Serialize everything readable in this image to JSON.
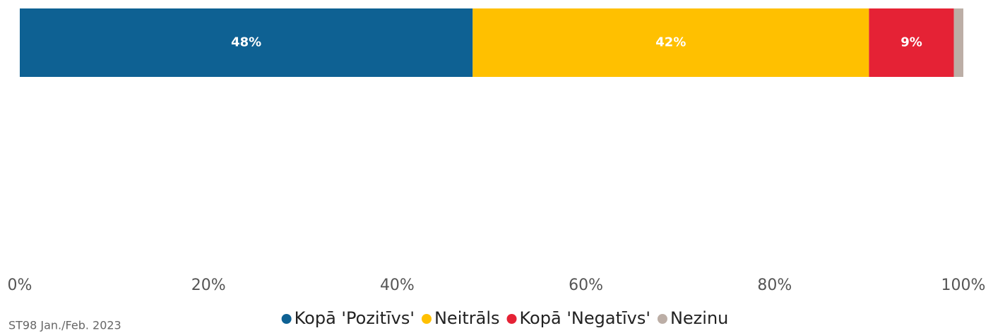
{
  "chart_data": {
    "type": "stacked-bar-horizontal",
    "categories": [
      null
    ],
    "series": [
      {
        "name": "Kopā 'Pozitīvs'",
        "color": "#0e6193",
        "values": [
          48
        ],
        "value_labels": [
          "48%"
        ]
      },
      {
        "name": "Neitrāls",
        "color": "#ffc000",
        "values": [
          42
        ],
        "value_labels": [
          "42%"
        ]
      },
      {
        "name": "Kopā 'Negatīvs'",
        "color": "#e52235",
        "values": [
          9
        ],
        "value_labels": [
          "9%"
        ]
      },
      {
        "name": "Nezinu",
        "color": "#bcaea6",
        "values": [
          1
        ],
        "value_labels": [
          null
        ]
      }
    ],
    "xlim": [
      0,
      100
    ],
    "xticks": [
      {
        "value": 0,
        "label": "0%"
      },
      {
        "value": 20,
        "label": "20%"
      },
      {
        "value": 40,
        "label": "40%"
      },
      {
        "value": 60,
        "label": "60%"
      },
      {
        "value": 80,
        "label": "80%"
      },
      {
        "value": 100,
        "label": "100%"
      }
    ],
    "legend": "bottom",
    "source": "ST98 Jan./Feb. 2023"
  }
}
